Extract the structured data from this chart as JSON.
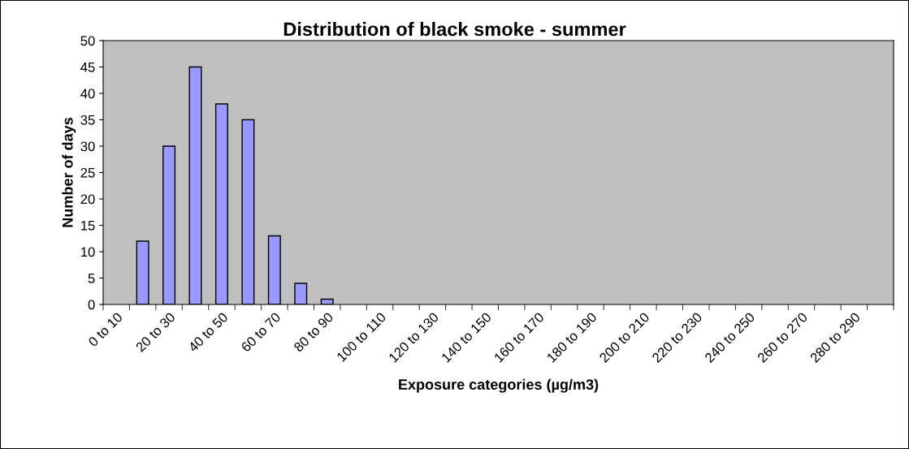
{
  "chart_data": {
    "type": "bar",
    "title": "Distribution of black smoke - summer",
    "xlabel": "Exposure categories (µg/m3)",
    "ylabel": "Number of days",
    "categories": [
      "0 to 10",
      null,
      "20 to 30",
      null,
      "40 to 50",
      null,
      "60 to 70",
      null,
      "80 to 90",
      null,
      "100 to 110",
      null,
      "120 to 130",
      null,
      "140 to 150",
      null,
      "160 to 170",
      null,
      "180 to 190",
      null,
      "200 to 210",
      null,
      "220 to 230",
      null,
      "240 to 250",
      null,
      "260 to 270",
      null,
      "280 to 290",
      null
    ],
    "values": [
      0,
      12,
      30,
      45,
      38,
      35,
      13,
      4,
      1,
      0,
      0,
      0,
      0,
      0,
      0,
      0,
      0,
      0,
      0,
      0,
      0,
      0,
      0,
      0,
      0,
      0,
      0,
      0,
      0,
      0
    ],
    "color": "#9999ff",
    "ylim": [
      0,
      50
    ],
    "yticks": [
      0,
      5,
      10,
      15,
      20,
      25,
      30,
      35,
      40,
      45,
      50
    ],
    "grid": false,
    "legend": false
  }
}
